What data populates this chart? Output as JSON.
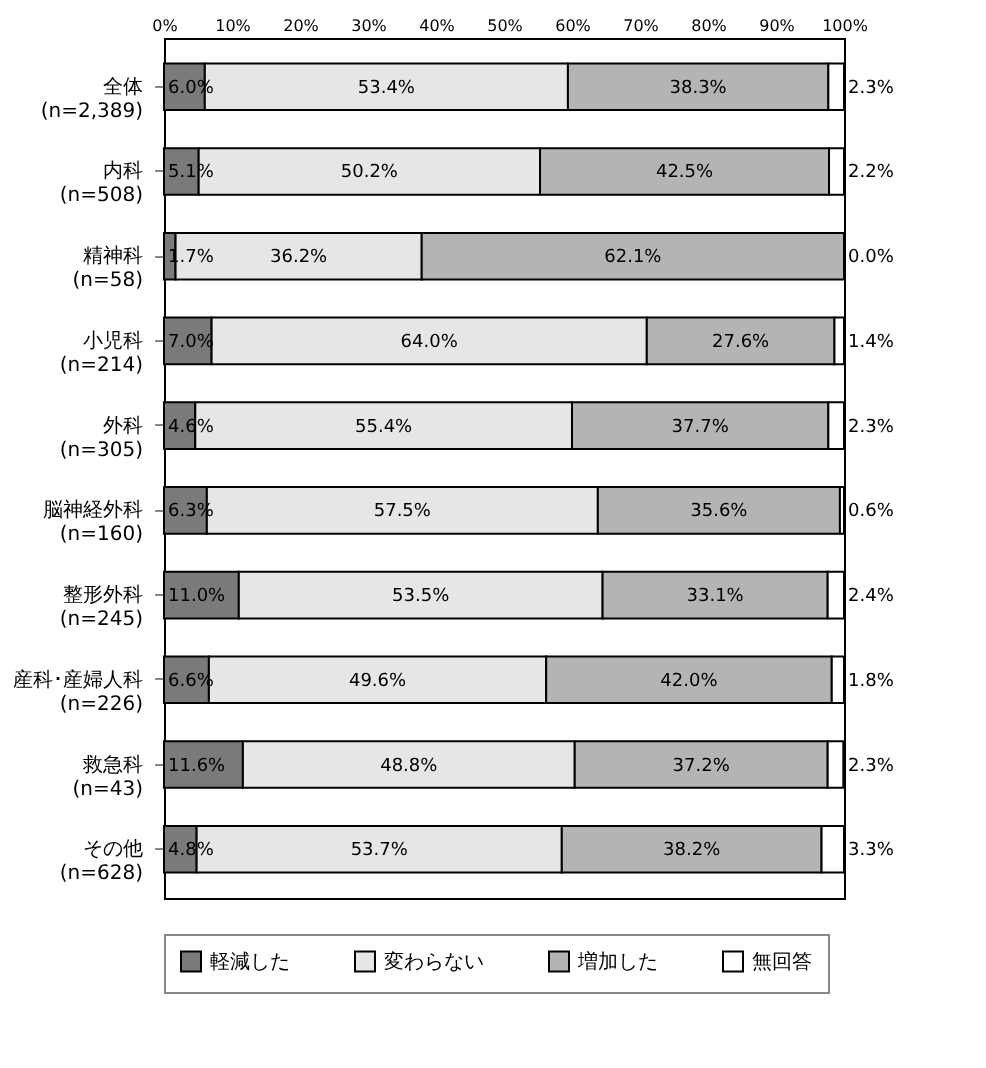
{
  "chart_data": {
    "type": "bar",
    "orientation": "horizontal",
    "stacked": true,
    "categories": [
      "全体\n(n=2,389)",
      "内科\n(n=508)",
      "精神科\n(n=58)",
      "小児科\n(n=214)",
      "外科\n(n=305)",
      "脳神経外科\n(n=160)",
      "整形外科\n(n=245)",
      "産科･産婦人科\n(n=226)",
      "救急科\n(n=43)",
      "その他\n(n=628)"
    ],
    "series": [
      {
        "name": "軽減した",
        "color": "#7a7a7a",
        "values": [
          6.0,
          5.1,
          1.7,
          7.0,
          4.6,
          6.3,
          11.0,
          6.6,
          11.6,
          4.8
        ],
        "value_labels": [
          "6.0%",
          "5.1%",
          "1.7%",
          "7.0%",
          "4.6%",
          "6.3%",
          "11.0%",
          "6.6%",
          "11.6%",
          "4.8%"
        ]
      },
      {
        "name": "変わらない",
        "color": "#e6e6e6",
        "values": [
          53.4,
          50.2,
          36.2,
          64.0,
          55.4,
          57.5,
          53.5,
          49.6,
          48.8,
          53.7
        ],
        "value_labels": [
          "53.4%",
          "50.2%",
          "36.2%",
          "64.0%",
          "55.4%",
          "57.5%",
          "53.5%",
          "49.6%",
          "48.8%",
          "53.7%"
        ]
      },
      {
        "name": "増加した",
        "color": "#b4b4b4",
        "values": [
          38.3,
          42.5,
          62.1,
          27.6,
          37.7,
          35.6,
          33.1,
          42.0,
          37.2,
          38.2
        ],
        "value_labels": [
          "38.3%",
          "42.5%",
          "62.1%",
          "27.6%",
          "37.7%",
          "35.6%",
          "33.1%",
          "42.0%",
          "37.2%",
          "38.2%"
        ]
      },
      {
        "name": "無回答",
        "color": "#ffffff",
        "values": [
          2.3,
          2.2,
          0.0,
          1.4,
          2.3,
          0.6,
          2.4,
          1.8,
          2.3,
          3.3
        ],
        "value_labels": [
          "2.3%",
          "2.2%",
          "0.0%",
          "1.4%",
          "2.3%",
          "0.6%",
          "2.4%",
          "1.8%",
          "2.3%",
          "3.3%"
        ]
      }
    ],
    "xlim": [
      0,
      100
    ],
    "xticks": [
      {
        "value": 0,
        "label": "0%"
      },
      {
        "value": 10,
        "label": "10%"
      },
      {
        "value": 20,
        "label": "20%"
      },
      {
        "value": 30,
        "label": "30%"
      },
      {
        "value": 40,
        "label": "40%"
      },
      {
        "value": 50,
        "label": "50%"
      },
      {
        "value": 60,
        "label": "60%"
      },
      {
        "value": 70,
        "label": "70%"
      },
      {
        "value": 80,
        "label": "80%"
      },
      {
        "value": 90,
        "label": "90%"
      },
      {
        "value": 100,
        "label": "100%"
      }
    ],
    "grid": false,
    "legend": "bottom"
  }
}
